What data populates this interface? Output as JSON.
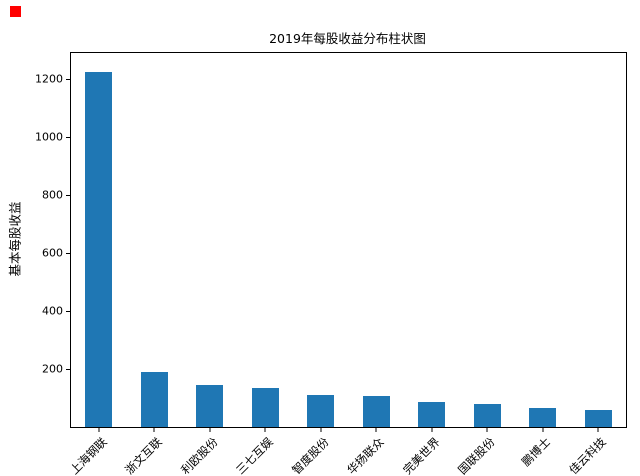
{
  "figure": {
    "marker_color": "#ff0000",
    "background": "#ffffff"
  },
  "chart_data": {
    "type": "bar",
    "title": "2019年每股收益分布柱状图",
    "xlabel": "",
    "ylabel": "基本每股收益",
    "categories": [
      "上海钢联",
      "浙文互联",
      "利欧股份",
      "三七互娱",
      "智度股份",
      "华扬联众",
      "完美世界",
      "国联股份",
      "鹏博士",
      "佳云科技"
    ],
    "values": [
      1225,
      190,
      145,
      135,
      112,
      107,
      85,
      78,
      67,
      58
    ],
    "yticks": [
      200,
      400,
      600,
      800,
      1000,
      1200
    ],
    "ylim": [
      0,
      1290
    ],
    "bar_color": "#1f77b4",
    "grid": false,
    "legend_position": "none",
    "x_tick_rotation_deg": 45
  }
}
